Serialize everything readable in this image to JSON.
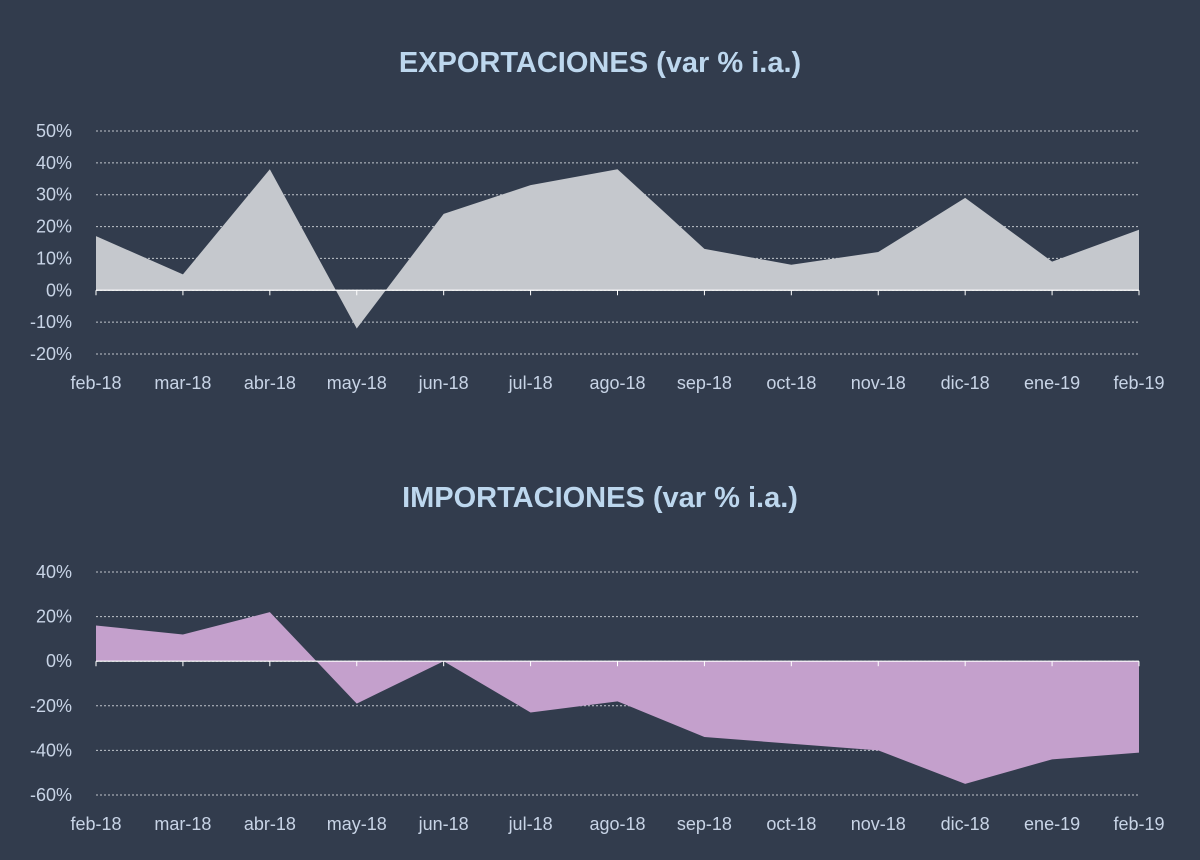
{
  "colors": {
    "background": "#323c4d",
    "title": "#bdd7ee",
    "tick_text": "#c8d4e6",
    "grid": "#d9dde3",
    "export_fill": "#c5c8cd",
    "import_fill": "#c4a0cc"
  },
  "chart_data": [
    {
      "type": "area",
      "title": "EXPORTACIONES (var % i.a.)",
      "xlabel": "",
      "ylabel": "",
      "categories": [
        "feb-18",
        "mar-18",
        "abr-18",
        "may-18",
        "jun-18",
        "jul-18",
        "ago-18",
        "sep-18",
        "oct-18",
        "nov-18",
        "dic-18",
        "ene-19",
        "feb-19"
      ],
      "series": [
        {
          "values": [
            17,
            5,
            38,
            -12,
            24,
            33,
            38,
            13,
            8,
            12,
            29,
            9,
            19
          ]
        }
      ],
      "ylim": [
        -20,
        50
      ],
      "yticks": [
        50,
        40,
        30,
        20,
        10,
        0,
        -10,
        -20
      ],
      "ytick_labels": [
        "50%",
        "40%",
        "30%",
        "20%",
        "10%",
        "0%",
        "-10%",
        "-20%"
      ],
      "grid": true,
      "legend": "none"
    },
    {
      "type": "area",
      "title": "IMPORTACIONES (var % i.a.)",
      "xlabel": "",
      "ylabel": "",
      "categories": [
        "feb-18",
        "mar-18",
        "abr-18",
        "may-18",
        "jun-18",
        "jul-18",
        "ago-18",
        "sep-18",
        "oct-18",
        "nov-18",
        "dic-18",
        "ene-19",
        "feb-19"
      ],
      "series": [
        {
          "values": [
            16,
            12,
            22,
            -19,
            0,
            -23,
            -18,
            -34,
            -37,
            -40,
            -55,
            -44,
            -41
          ]
        }
      ],
      "ylim": [
        -60,
        40
      ],
      "yticks": [
        40,
        20,
        0,
        -20,
        -40,
        -60
      ],
      "ytick_labels": [
        "40%",
        "20%",
        "0%",
        "-20%",
        "-40%",
        "-60%"
      ],
      "grid": true,
      "legend": "none"
    }
  ]
}
